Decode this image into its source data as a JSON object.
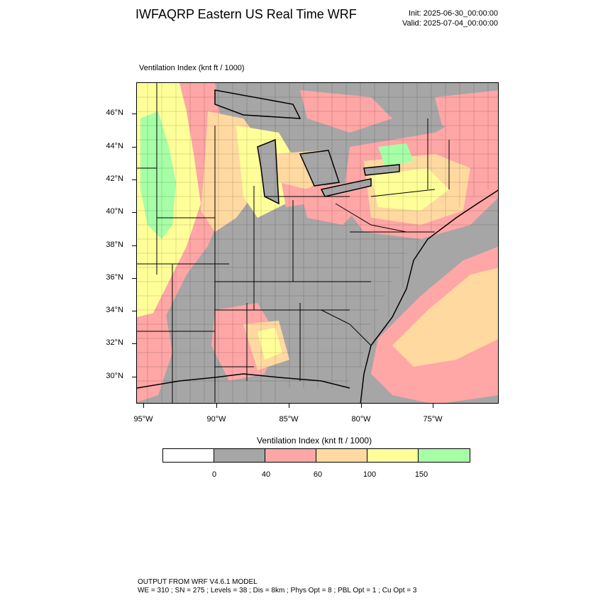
{
  "header": {
    "title": "IWFAQRP Eastern US Real Time WRF",
    "init": "Init: 2025-06-30_00:00:00",
    "valid": "Valid: 2025-07-04_00:00:00"
  },
  "map": {
    "field_label": "Ventilation Index   (knt ft / 1000)",
    "lat_labels": [
      "46°N",
      "44°N",
      "42°N",
      "40°N",
      "38°N",
      "36°N",
      "34°N",
      "32°N",
      "30°N"
    ],
    "lon_labels": [
      "95°W",
      "90°W",
      "85°W",
      "80°W",
      "75°W"
    ],
    "colors": {
      "land_low": "#a6a6a6",
      "ocean": "#a6a6a6",
      "pink": "#ffa6a6",
      "orange": "#ffd9a0",
      "yellow": "#ffff99",
      "green": "#a6ffa6",
      "boundaries": "#000000"
    }
  },
  "legend": {
    "title": "Ventilation Index  (knt ft / 1000)",
    "swatches": [
      "#ffffff",
      "#a6a6a6",
      "#ffa6a6",
      "#ffd9a0",
      "#ffff99",
      "#a6ffa6"
    ],
    "ticks": [
      "0",
      "40",
      "60",
      "100",
      "150"
    ]
  },
  "footer": {
    "line1": "OUTPUT FROM WRF V4.6.1 MODEL",
    "line2": "WE = 310 ; SN = 275 ; Levels = 38 ; Dis = 8km ; Phys Opt = 8 ; PBL Opt = 1 ; Cu Opt = 3"
  }
}
